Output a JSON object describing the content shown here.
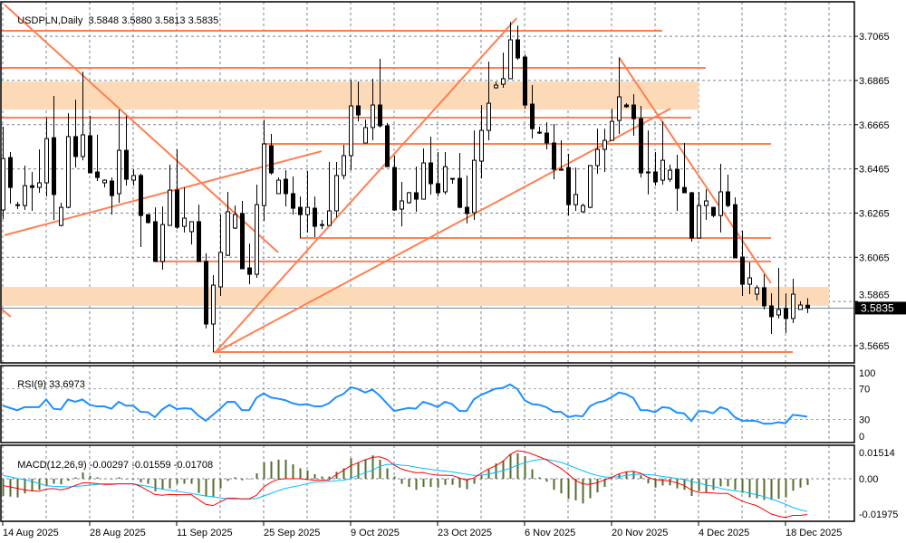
{
  "header": {
    "symbol_timeframe": "USDPLN,Daily",
    "ohlc_text": "3.5848 3.5880 3.5813 3.5835"
  },
  "chart_data": {
    "type": "candlestick",
    "title": "USDPLN,Daily",
    "ohlc_last": {
      "open": 3.5848,
      "high": 3.588,
      "low": 3.5813,
      "close": 3.5835
    },
    "ylim": [
      3.5587,
      3.7221
    ],
    "price_axis": {
      "ticks": [
        "3.7065",
        "3.6865",
        "3.6665",
        "3.6465",
        "3.6265",
        "3.6065",
        "3.5865",
        "3.5665"
      ],
      "current": "3.5835"
    },
    "x_labels": [
      {
        "bar": 0,
        "label": "14 Aug 2025"
      },
      {
        "bar": 12,
        "label": "28 Aug 2025"
      },
      {
        "bar": 24,
        "label": "11 Sep 2025"
      },
      {
        "bar": 36,
        "label": "25 Sep 2025"
      },
      {
        "bar": 48,
        "label": "9 Oct 2025"
      },
      {
        "bar": 60,
        "label": "23 Oct 2025"
      },
      {
        "bar": 72,
        "label": "6 Nov 2025"
      },
      {
        "bar": 84,
        "label": "20 Nov 2025"
      },
      {
        "bar": 96,
        "label": "4 Dec 2025"
      },
      {
        "bar": 108,
        "label": "18 Dec 2025"
      }
    ],
    "candles_ohlc": [
      [
        3.6279,
        3.6656,
        3.6238,
        3.6512
      ],
      [
        3.6516,
        3.6541,
        3.6308,
        3.6381
      ],
      [
        3.6303,
        3.6316,
        3.6283,
        3.6299
      ],
      [
        3.6299,
        3.648,
        3.6279,
        3.6389
      ],
      [
        3.6389,
        3.6451,
        3.6275,
        3.6381
      ],
      [
        3.6381,
        3.6553,
        3.6357,
        3.6402
      ],
      [
        3.6402,
        3.6697,
        3.634,
        3.6602
      ],
      [
        3.6606,
        3.6795,
        3.6234,
        3.6349
      ],
      [
        3.6209,
        3.6312,
        3.6205,
        3.6291
      ],
      [
        3.6291,
        3.6717,
        3.6287,
        3.6611
      ],
      [
        3.6611,
        3.6778,
        3.6471,
        3.6521
      ],
      [
        3.6521,
        3.6905,
        3.6504,
        3.6619
      ],
      [
        3.6615,
        3.6705,
        3.6447,
        3.6447
      ],
      [
        3.6451,
        3.6619,
        3.641,
        3.6426
      ],
      [
        3.6402,
        3.6418,
        3.6381,
        3.6414
      ],
      [
        3.641,
        3.6426,
        3.6258,
        3.6344
      ],
      [
        3.6353,
        3.6733,
        3.6312,
        3.6549
      ],
      [
        3.6549,
        3.6705,
        3.6389,
        3.6418
      ],
      [
        3.6414,
        3.6463,
        3.6389,
        3.6435
      ],
      [
        3.6435,
        3.6443,
        3.6111,
        3.6254
      ],
      [
        3.6258,
        3.6258,
        3.6218,
        3.6222
      ],
      [
        3.6226,
        3.6291,
        3.6046,
        3.6046
      ],
      [
        3.6046,
        3.6295,
        3.6009,
        3.6213
      ],
      [
        3.6209,
        3.6484,
        3.6209,
        3.6369
      ],
      [
        3.6369,
        3.6553,
        3.6193,
        3.6201
      ],
      [
        3.6205,
        3.6381,
        3.6177,
        3.6242
      ],
      [
        3.6181,
        3.6226,
        3.6123,
        3.6226
      ],
      [
        3.6226,
        3.6303,
        3.6046,
        3.6046
      ],
      [
        3.6046,
        3.6083,
        3.5743,
        3.5763
      ],
      [
        3.5763,
        3.5984,
        3.5636,
        3.5939
      ],
      [
        3.5931,
        3.6258,
        3.589,
        3.6087
      ],
      [
        3.6074,
        3.6361,
        3.607,
        3.6271
      ],
      [
        3.6197,
        3.6299,
        3.6193,
        3.6258
      ],
      [
        3.6263,
        3.632,
        3.6013,
        3.6013
      ],
      [
        3.6017,
        3.6127,
        3.5943,
        3.5988
      ],
      [
        3.5988,
        3.6394,
        3.5972,
        3.6303
      ],
      [
        3.6299,
        3.6688,
        3.623,
        3.6578
      ],
      [
        3.657,
        3.6623,
        3.6439,
        3.6447
      ],
      [
        3.6353,
        3.6426,
        3.6353,
        3.6414
      ],
      [
        3.6418,
        3.6459,
        3.6295,
        3.6353
      ],
      [
        3.6353,
        3.643,
        3.6258,
        3.6287
      ],
      [
        3.6291,
        3.634,
        3.6152,
        3.6258
      ],
      [
        3.6258,
        3.6455,
        3.6177,
        3.6291
      ],
      [
        3.6287,
        3.634,
        3.6156,
        3.6205
      ],
      [
        3.6213,
        3.6234,
        3.6193,
        3.6209
      ],
      [
        3.6209,
        3.6496,
        3.6209,
        3.6275
      ],
      [
        3.6275,
        3.6496,
        3.6246,
        3.6435
      ],
      [
        3.6435,
        3.6574,
        3.6418,
        3.6525
      ],
      [
        3.6525,
        3.6868,
        3.6459,
        3.675
      ],
      [
        3.675,
        3.686,
        3.668,
        3.6709
      ],
      [
        3.6582,
        3.6688,
        3.6582,
        3.6652
      ],
      [
        3.6652,
        3.6873,
        3.6594,
        3.6754
      ],
      [
        3.6754,
        3.6963,
        3.6652,
        3.666
      ],
      [
        3.666,
        3.6672,
        3.6475,
        3.6475
      ],
      [
        3.6471,
        3.6525,
        3.6275,
        3.6279
      ],
      [
        3.6283,
        3.6406,
        3.6205,
        3.632
      ],
      [
        3.6312,
        3.6361,
        3.6308,
        3.6357
      ],
      [
        3.6357,
        3.6475,
        3.6271,
        3.6328
      ],
      [
        3.6328,
        3.6557,
        3.6328,
        3.6492
      ],
      [
        3.6492,
        3.6611,
        3.6349,
        3.6398
      ],
      [
        3.6398,
        3.6541,
        3.634,
        3.6357
      ],
      [
        3.6361,
        3.6541,
        3.6349,
        3.6475
      ],
      [
        3.6422,
        3.6422,
        3.6398,
        3.6418
      ],
      [
        3.6422,
        3.6537,
        3.6287,
        3.6291
      ],
      [
        3.6291,
        3.6435,
        3.6218,
        3.6263
      ],
      [
        3.6267,
        3.6639,
        3.6234,
        3.6504
      ],
      [
        3.65,
        3.6754,
        3.6422,
        3.6639
      ],
      [
        3.6639,
        3.695,
        3.6594,
        3.6762
      ],
      [
        3.6832,
        3.686,
        3.6828,
        3.6844
      ],
      [
        3.6848,
        3.6991,
        3.6832,
        3.6873
      ],
      [
        3.6873,
        3.713,
        3.6873,
        3.7049
      ],
      [
        3.7049,
        3.7114,
        3.6959,
        3.6967
      ],
      [
        3.6971,
        3.6983,
        3.6737,
        3.6754
      ],
      [
        3.6758,
        3.6844,
        3.6602,
        3.6647
      ],
      [
        3.6631,
        3.6656,
        3.6623,
        3.6627
      ],
      [
        3.6627,
        3.6676,
        3.6553,
        3.6582
      ],
      [
        3.6582,
        3.6668,
        3.6418,
        3.6463
      ],
      [
        3.6459,
        3.6594,
        3.6459,
        3.6463
      ],
      [
        3.6471,
        3.6533,
        3.6254,
        3.6303
      ],
      [
        3.6303,
        3.6471,
        3.6275,
        3.6349
      ],
      [
        3.6271,
        3.6308,
        3.6267,
        3.6299
      ],
      [
        3.6291,
        3.648,
        3.6287,
        3.648
      ],
      [
        3.648,
        3.6647,
        3.6443,
        3.6553
      ],
      [
        3.6553,
        3.6647,
        3.6451,
        3.6594
      ],
      [
        3.6594,
        3.6737,
        3.6594,
        3.668
      ],
      [
        3.6684,
        3.6967,
        3.6623,
        3.6791
      ],
      [
        3.6754,
        3.6762,
        3.6742,
        3.6746
      ],
      [
        3.6754,
        3.6803,
        3.6615,
        3.6692
      ],
      [
        3.6692,
        3.675,
        3.6426,
        3.6447
      ],
      [
        3.6451,
        3.6639,
        3.6349,
        3.6447
      ],
      [
        3.6451,
        3.6541,
        3.6389,
        3.6406
      ],
      [
        3.6414,
        3.668,
        3.6394,
        3.6504
      ],
      [
        3.6418,
        3.6484,
        3.6406,
        3.6459
      ],
      [
        3.6463,
        3.6529,
        3.6275,
        3.6377
      ],
      [
        3.6381,
        3.6582,
        3.6357,
        3.6357
      ],
      [
        3.6357,
        3.6361,
        3.6136,
        3.6152
      ],
      [
        3.6152,
        3.6361,
        3.6152,
        3.6299
      ],
      [
        3.6299,
        3.6373,
        3.6234,
        3.632
      ],
      [
        3.6291,
        3.6291,
        3.6246,
        3.6254
      ],
      [
        3.6254,
        3.6488,
        3.6177,
        3.6361
      ],
      [
        3.6361,
        3.6439,
        3.6291,
        3.6299
      ],
      [
        3.6303,
        3.6336,
        3.6062,
        3.6062
      ],
      [
        3.6066,
        3.6185,
        3.589,
        3.5943
      ],
      [
        3.5943,
        3.6042,
        3.5898,
        3.5972
      ],
      [
        3.5898,
        3.5939,
        3.587,
        3.5927
      ],
      [
        3.5927,
        3.5988,
        3.5829,
        3.5845
      ],
      [
        3.5845,
        3.5902,
        3.5718,
        3.5796
      ],
      [
        3.5804,
        3.6017,
        3.5788,
        3.5829
      ],
      [
        3.5833,
        3.5902,
        3.5722,
        3.5788
      ],
      [
        3.5788,
        3.5968,
        3.5767,
        3.5898
      ],
      [
        3.5829,
        3.5866,
        3.5829,
        3.5849
      ],
      [
        3.5848,
        3.588,
        3.5813,
        3.5835
      ]
    ],
    "drawings": {
      "color": "#FF7F50",
      "zone_color": "#FDDAB7",
      "hlines": [
        {
          "price": 3.709,
          "from_bar": -1,
          "to_bar": 91
        },
        {
          "price": 3.6922,
          "from_bar": -1,
          "to_bar": 97
        },
        {
          "price": 3.6697,
          "from_bar": -1,
          "to_bar": 95
        },
        {
          "price": 3.6578,
          "from_bar": 36,
          "to_bar": 106
        },
        {
          "price": 3.6152,
          "from_bar": 41,
          "to_bar": 106
        },
        {
          "price": 3.6046,
          "from_bar": 21,
          "to_bar": 106
        },
        {
          "price": 3.5636,
          "from_bar": 29,
          "to_bar": 109
        }
      ],
      "zones": [
        {
          "top": 3.686,
          "bottom": 3.6733,
          "from_bar": -1,
          "to_bar": 96
        },
        {
          "top": 3.5931,
          "bottom": 3.5845,
          "from_bar": -1,
          "to_bar": 114
        }
      ],
      "trendlines": [
        {
          "bar1": 0.25,
          "price1": 3.7208,
          "bar2": 38,
          "price2": 3.6087
        },
        {
          "bar1": 0.25,
          "price1": 3.6165,
          "bar2": 44,
          "price2": 3.6545
        },
        {
          "bar1": 29.25,
          "price1": 3.5632,
          "bar2": 70.9,
          "price2": 3.7147
        },
        {
          "bar1": 29.25,
          "price1": 3.5632,
          "bar2": 92.1,
          "price2": 3.6737
        },
        {
          "bar1": 85,
          "price1": 3.6971,
          "bar2": 106,
          "price2": 3.5948
        },
        {
          "bar1": -0.4,
          "price1": 3.5837,
          "bar2": 1.1,
          "price2": 3.5796
        }
      ]
    },
    "rsi": {
      "label": "RSI(9)",
      "value_text": "33.6973",
      "color": "#1E90FF",
      "ylim": [
        0,
        100
      ],
      "levels": [
        70,
        30
      ],
      "ticks": [
        "100",
        "70",
        "30",
        "0"
      ],
      "values": [
        48,
        45,
        42,
        46,
        46,
        46,
        56,
        44,
        43,
        56,
        53,
        56,
        49,
        47,
        47,
        44,
        53,
        48,
        48,
        40,
        39.5,
        33,
        43,
        49,
        43.5,
        44.6,
        44,
        35,
        28.4,
        36,
        44,
        53,
        53,
        42,
        42,
        58,
        64,
        58.5,
        57,
        55,
        51,
        49,
        50,
        47,
        47,
        51,
        59,
        63,
        72,
        69.6,
        65,
        69,
        61,
        51,
        41,
        43,
        45,
        44,
        53,
        50,
        46,
        53,
        50,
        41,
        41,
        56,
        62,
        66,
        70,
        71,
        75.5,
        69.6,
        55,
        50,
        49,
        46,
        40,
        40,
        33,
        35,
        34,
        47,
        52,
        54,
        59,
        65,
        63,
        58,
        42,
        42,
        39.5,
        46,
        45,
        39,
        38,
        28,
        40.7,
        40.7,
        38,
        46,
        43,
        33,
        28.4,
        28.4,
        28,
        24.5,
        24.5,
        26.4,
        25,
        36,
        35,
        33.7
      ]
    },
    "macd": {
      "label": "MACD(12,26,9)",
      "values_text": [
        "-0.00297",
        "-0.01559",
        "-0.01708"
      ],
      "ticks": [
        "0.01514",
        "0.00",
        "-0.01975"
      ],
      "ylim": [
        -0.0203,
        0.016
      ],
      "colors": {
        "histogram": "#556B2F",
        "red": "#FF0000",
        "blue": "#00BFFF"
      },
      "histogram": [
        -0.0082,
        -0.0085,
        -0.0089,
        -0.007,
        -0.006,
        -0.0053,
        -0.0036,
        -0.0024,
        -0.0027,
        -0.001,
        0.0007,
        0.003,
        0.0014,
        0.0007,
        0.0001,
        -0.0003,
        0.0007,
        -0.0003,
        -0.0003,
        -0.0017,
        -0.0024,
        -0.006,
        -0.0053,
        -0.0046,
        -0.0024,
        -0.0024,
        -0.0024,
        -0.0068,
        -0.0085,
        -0.0089,
        -0.0046,
        -0.001,
        0.0007,
        -0.0007,
        -0.0003,
        0.0026,
        0.0079,
        0.0083,
        0.0091,
        0.0091,
        0.0069,
        0.005,
        0.004,
        0.0022,
        0.0011,
        0.0011,
        0.0033,
        0.005,
        0.0098,
        0.0079,
        0.0091,
        0.0112,
        0.0091,
        0.005,
        0.0011,
        -0.0024,
        -0.0039,
        -0.0053,
        -0.0039,
        -0.0039,
        -0.0042,
        -0.0029,
        -0.0029,
        -0.0042,
        -0.005,
        -0.0024,
        0.0016,
        0.0045,
        0.0073,
        0.0088,
        0.0119,
        0.0122,
        0.0108,
        0.0045,
        0.0007,
        -0.0014,
        -0.0053,
        -0.007,
        -0.0096,
        -0.0103,
        -0.0118,
        -0.0093,
        -0.0065,
        -0.0039,
        0.0004,
        0.0022,
        0.0033,
        0.0036,
        0.0016,
        -0.0022,
        -0.0042,
        -0.0032,
        -0.0032,
        -0.0046,
        -0.0053,
        -0.0082,
        -0.006,
        -0.0065,
        -0.0053,
        -0.0036,
        -0.0036,
        -0.0053,
        -0.0068,
        -0.0089,
        -0.0093,
        -0.0101,
        -0.0101,
        -0.0096,
        -0.0089,
        -0.0057,
        -0.0042,
        -0.003
      ],
      "line_red": [
        -0.0032,
        -0.0039,
        -0.0046,
        -0.0053,
        -0.0057,
        -0.006,
        -0.0049,
        -0.0047,
        -0.0053,
        -0.0046,
        -0.0032,
        -0.002,
        -0.002,
        -0.0023,
        -0.0027,
        -0.0027,
        -0.0024,
        -0.0024,
        -0.0024,
        -0.0036,
        -0.0056,
        -0.0075,
        -0.0079,
        -0.0075,
        -0.0076,
        -0.0076,
        -0.0076,
        -0.0099,
        -0.0122,
        -0.0128,
        -0.0111,
        -0.0093,
        -0.0093,
        -0.0096,
        -0.0096,
        -0.0079,
        -0.0039,
        -0.0017,
        -0.0003,
        0.0,
        0.0,
        0.0,
        -0.0003,
        -0.0007,
        -0.0007,
        -0.0006,
        0.0019,
        0.004,
        0.0062,
        0.0076,
        0.0091,
        0.0102,
        0.0105,
        0.0093,
        0.0065,
        0.0047,
        0.0037,
        0.0029,
        0.003,
        0.0022,
        0.0017,
        0.0017,
        0.0016,
        0.0004,
        -0.0007,
        0.0004,
        0.0026,
        0.0047,
        0.0062,
        0.0083,
        0.0116,
        0.0134,
        0.0129,
        0.0119,
        0.0105,
        0.0091,
        0.0069,
        0.005,
        0.0023,
        -0.0007,
        -0.0024,
        -0.0027,
        -0.0019,
        -0.0006,
        0.0007,
        0.0023,
        0.0033,
        0.0036,
        0.0026,
        0.0007,
        -0.0004,
        -0.0007,
        -0.001,
        -0.0019,
        -0.0032,
        -0.0053,
        -0.0065,
        -0.0066,
        -0.0068,
        -0.007,
        -0.007,
        -0.0089,
        -0.0106,
        -0.0118,
        -0.0128,
        -0.0147,
        -0.0168,
        -0.0178,
        -0.0185,
        -0.0175,
        -0.0175,
        -0.0171
      ],
      "line_blue": [
        0.0016,
        0.001,
        0.0001,
        -0.0004,
        -0.0013,
        -0.0022,
        -0.0033,
        -0.0036,
        -0.0037,
        -0.0039,
        -0.0036,
        -0.0034,
        -0.003,
        -0.0027,
        -0.0024,
        -0.0024,
        -0.0024,
        -0.0024,
        -0.0024,
        -0.003,
        -0.0036,
        -0.0043,
        -0.0049,
        -0.0055,
        -0.006,
        -0.0065,
        -0.007,
        -0.0076,
        -0.0082,
        -0.0086,
        -0.0091,
        -0.0095,
        -0.0096,
        -0.0096,
        -0.0096,
        -0.0095,
        -0.0082,
        -0.007,
        -0.0057,
        -0.0046,
        -0.0039,
        -0.0032,
        -0.0023,
        -0.0016,
        -0.0014,
        -0.0013,
        -0.001,
        -0.0007,
        0.0001,
        0.0016,
        0.0029,
        0.004,
        0.0059,
        0.0068,
        0.0069,
        0.0065,
        0.0062,
        0.0055,
        0.005,
        0.0045,
        0.004,
        0.0037,
        0.0033,
        0.0027,
        0.0022,
        0.0016,
        0.0017,
        0.0023,
        0.003,
        0.0039,
        0.005,
        0.0065,
        0.0076,
        0.0086,
        0.0092,
        0.0093,
        0.0086,
        0.0079,
        0.0066,
        0.0052,
        0.0039,
        0.0026,
        0.0016,
        0.0009,
        0.0007,
        0.001,
        0.0016,
        0.002,
        0.0022,
        0.002,
        0.0017,
        0.0011,
        0.0007,
        0.0001,
        -0.0004,
        -0.0013,
        -0.002,
        -0.0029,
        -0.0036,
        -0.0045,
        -0.0053,
        -0.0057,
        -0.0062,
        -0.0068,
        -0.0076,
        -0.0085,
        -0.0096,
        -0.0108,
        -0.0122,
        -0.0137,
        -0.0148,
        -0.0156
      ]
    }
  }
}
